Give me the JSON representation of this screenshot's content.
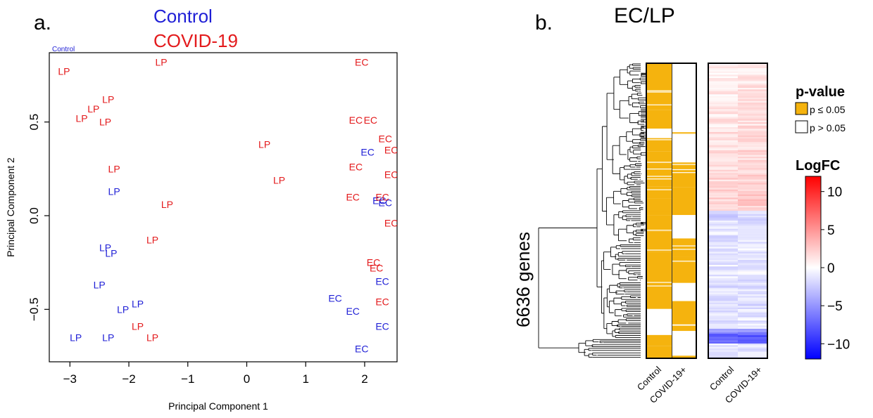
{
  "panel_a": {
    "letter": "a.",
    "legend": [
      {
        "label": "Control",
        "color": "#1f1fd6"
      },
      {
        "label": "COVID-19",
        "color": "#e31a1c"
      }
    ],
    "stray_label": "Control"
  },
  "panel_b": {
    "letter": "b.",
    "title": "EC/LP",
    "genes_label": "6636 genes",
    "col_labels": [
      "Control",
      "COVID-19+",
      "Control",
      "COVID-19+"
    ],
    "pvalue_legend": {
      "title": "p-value",
      "items": [
        {
          "label": "p ≤ 0.05",
          "color": "#f5b30e"
        },
        {
          "label": "p > 0.05",
          "color": "#ffffff"
        }
      ]
    },
    "logfc_legend": {
      "title": "LogFC",
      "ticks": [
        "10",
        "5",
        "0",
        "−5",
        "−10"
      ],
      "tick_values": [
        10,
        5,
        0,
        -5,
        -10
      ],
      "range": [
        -12,
        12
      ]
    }
  },
  "chart_data": [
    {
      "type": "scatter",
      "title": "",
      "xlabel": "Principal Component 1",
      "ylabel": "Principal Component 2",
      "xlim": [
        -3.35,
        2.55
      ],
      "ylim": [
        -0.78,
        0.87
      ],
      "xticks": [
        -3,
        -2,
        -1,
        0,
        1,
        2
      ],
      "xtick_labels": [
        "−3",
        "−2",
        "−1",
        "0",
        "1",
        "2"
      ],
      "yticks": [
        -0.5,
        0.0,
        0.5
      ],
      "ytick_labels": [
        "−0.5",
        "0.0",
        "0.5"
      ],
      "series": [
        {
          "name": "Control",
          "color": "#1f1fd6",
          "points": [
            {
              "x": -2.25,
              "y": 0.13,
              "label": "LP"
            },
            {
              "x": -2.4,
              "y": -0.17,
              "label": "LP"
            },
            {
              "x": -2.3,
              "y": -0.2,
              "label": "LP"
            },
            {
              "x": -2.5,
              "y": -0.37,
              "label": "LP"
            },
            {
              "x": -2.1,
              "y": -0.5,
              "label": "LP"
            },
            {
              "x": -1.85,
              "y": -0.47,
              "label": "LP"
            },
            {
              "x": -2.9,
              "y": -0.65,
              "label": "LP"
            },
            {
              "x": -2.35,
              "y": -0.65,
              "label": "LP"
            },
            {
              "x": 2.05,
              "y": 0.34,
              "label": "EC"
            },
            {
              "x": 2.25,
              "y": 0.08,
              "label": "EC"
            },
            {
              "x": 2.35,
              "y": 0.07,
              "label": "EC"
            },
            {
              "x": 2.3,
              "y": -0.35,
              "label": "EC"
            },
            {
              "x": 1.5,
              "y": -0.44,
              "label": "EC"
            },
            {
              "x": 1.8,
              "y": -0.51,
              "label": "EC"
            },
            {
              "x": 2.3,
              "y": -0.59,
              "label": "EC"
            },
            {
              "x": 1.95,
              "y": -0.71,
              "label": "EC"
            }
          ]
        },
        {
          "name": "COVID-19",
          "color": "#e31a1c",
          "points": [
            {
              "x": -3.1,
              "y": 0.77,
              "label": "LP"
            },
            {
              "x": -1.45,
              "y": 0.82,
              "label": "LP"
            },
            {
              "x": -2.35,
              "y": 0.62,
              "label": "LP"
            },
            {
              "x": -2.6,
              "y": 0.57,
              "label": "LP"
            },
            {
              "x": -2.8,
              "y": 0.52,
              "label": "LP"
            },
            {
              "x": -2.4,
              "y": 0.5,
              "label": "LP"
            },
            {
              "x": -2.25,
              "y": 0.25,
              "label": "LP"
            },
            {
              "x": -1.35,
              "y": 0.06,
              "label": "LP"
            },
            {
              "x": -1.6,
              "y": -0.13,
              "label": "LP"
            },
            {
              "x": -1.85,
              "y": -0.59,
              "label": "LP"
            },
            {
              "x": -1.6,
              "y": -0.65,
              "label": "LP"
            },
            {
              "x": 0.3,
              "y": 0.38,
              "label": "LP"
            },
            {
              "x": 0.55,
              "y": 0.19,
              "label": "LP"
            },
            {
              "x": 1.95,
              "y": 0.82,
              "label": "EC"
            },
            {
              "x": 1.85,
              "y": 0.51,
              "label": "EC"
            },
            {
              "x": 2.1,
              "y": 0.51,
              "label": "EC"
            },
            {
              "x": 2.35,
              "y": 0.41,
              "label": "EC"
            },
            {
              "x": 2.45,
              "y": 0.35,
              "label": "EC"
            },
            {
              "x": 1.85,
              "y": 0.26,
              "label": "EC"
            },
            {
              "x": 2.45,
              "y": 0.22,
              "label": "EC"
            },
            {
              "x": 1.8,
              "y": 0.1,
              "label": "EC"
            },
            {
              "x": 2.3,
              "y": 0.1,
              "label": "EC"
            },
            {
              "x": 2.45,
              "y": -0.04,
              "label": "EC"
            },
            {
              "x": 2.15,
              "y": -0.25,
              "label": "EC"
            },
            {
              "x": 2.2,
              "y": -0.28,
              "label": "EC"
            },
            {
              "x": 2.3,
              "y": -0.46,
              "label": "EC"
            }
          ]
        }
      ]
    },
    {
      "type": "heatmap",
      "title": "EC/LP",
      "row_count_label": "6636 genes",
      "columns": [
        "Control",
        "COVID-19+"
      ],
      "pvalue_fraction_significant": {
        "Control": 0.84,
        "COVID-19+": 0.67
      },
      "logfc_range": [
        -12,
        12
      ],
      "logfc_colorbar_ticks": [
        10,
        5,
        0,
        -5,
        -10
      ]
    }
  ]
}
